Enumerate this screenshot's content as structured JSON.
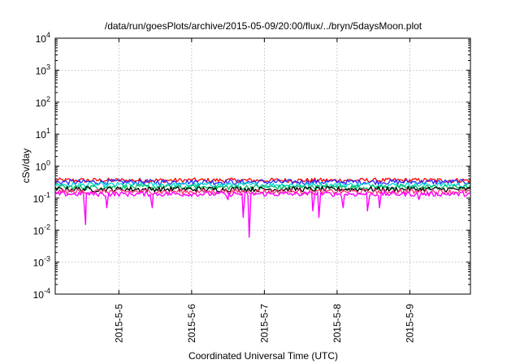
{
  "chart_data": {
    "type": "line",
    "title": "/data/run/goesPlots/archive/2015-05-09/20:00/flux/../bryn/5daysMoon.plot",
    "xlabel": "Coordinated Universal Time (UTC)",
    "ylabel": "cSv/day",
    "y_scale": "log",
    "ylim": [
      0.0001,
      10000
    ],
    "xlim": [
      "2015-05-04 03:00",
      "2015-05-09 20:00"
    ],
    "y_ticks": [
      {
        "base": "10",
        "exp": "-4"
      },
      {
        "base": "10",
        "exp": "-3"
      },
      {
        "base": "10",
        "exp": "-2"
      },
      {
        "base": "10",
        "exp": "-1"
      },
      {
        "base": "10",
        "exp": "0"
      },
      {
        "base": "10",
        "exp": "1"
      },
      {
        "base": "10",
        "exp": "2"
      },
      {
        "base": "10",
        "exp": "3"
      },
      {
        "base": "10",
        "exp": "4"
      }
    ],
    "x_ticks": [
      "2015-5-5",
      "2015-5-6",
      "2015-5-7",
      "2015-5-8",
      "2015-5-9"
    ],
    "grid": true,
    "colors": [
      "#ff0000",
      "#2a2aff",
      "#00d8d8",
      "#00c060",
      "#000000",
      "#ff3377",
      "#ff00ff"
    ],
    "series": [
      {
        "color": "#ff0000",
        "base": 0.36,
        "noise": 0.05,
        "dips": []
      },
      {
        "color": "#2a2aff",
        "base": 0.32,
        "noise": 0.05,
        "dips": []
      },
      {
        "color": "#00d8d8",
        "base": 0.26,
        "noise": 0.04,
        "dips": []
      },
      {
        "color": "#00c060",
        "base": 0.22,
        "noise": 0.035,
        "dips": []
      },
      {
        "color": "#000000",
        "base": 0.19,
        "noise": 0.03,
        "dips": []
      },
      {
        "color": "#ff3377",
        "base": 0.16,
        "noise": 0.025,
        "dips": []
      },
      {
        "color": "#ff00ff",
        "base": 0.135,
        "noise": 0.02,
        "dips": [
          {
            "x": "2015-05-04 13:00",
            "y": 0.015
          },
          {
            "x": "2015-05-04 20:00",
            "y": 0.05
          },
          {
            "x": "2015-05-05 11:00",
            "y": 0.05
          },
          {
            "x": "2015-05-06 12:00",
            "y": 0.09
          },
          {
            "x": "2015-05-06 17:00",
            "y": 0.025
          },
          {
            "x": "2015-05-06 19:00",
            "y": 0.006
          },
          {
            "x": "2015-05-07 16:00",
            "y": 0.04
          },
          {
            "x": "2015-05-07 18:00",
            "y": 0.025
          },
          {
            "x": "2015-05-08 02:00",
            "y": 0.05
          },
          {
            "x": "2015-05-08 10:00",
            "y": 0.04
          },
          {
            "x": "2015-05-08 14:00",
            "y": 0.05
          },
          {
            "x": "2015-05-09 03:00",
            "y": 0.09
          }
        ]
      }
    ]
  }
}
